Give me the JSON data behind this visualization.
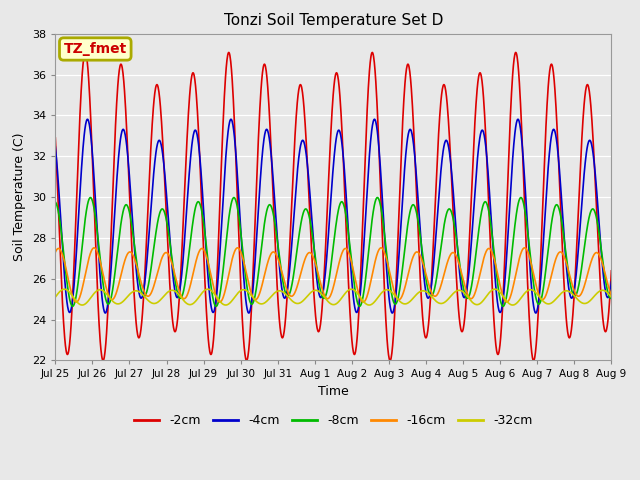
{
  "title": "Tonzi Soil Temperature Set D",
  "xlabel": "Time",
  "ylabel": "Soil Temperature (C)",
  "ylim": [
    22,
    38
  ],
  "yticks": [
    22,
    24,
    26,
    28,
    30,
    32,
    34,
    36,
    38
  ],
  "annotation": "TZ_fmet",
  "annotation_color": "#cc0000",
  "annotation_bg": "#ffffcc",
  "annotation_border": "#aaaa00",
  "fig_bg": "#e8e8e8",
  "plot_bg": "#e8e8e8",
  "series": {
    "-2cm": {
      "color": "#dd0000",
      "amplitude": 6.8,
      "mean": 29.5,
      "phase_hours": 0.0,
      "linewidth": 1.2
    },
    "-4cm": {
      "color": "#0000cc",
      "amplitude": 4.3,
      "mean": 29.0,
      "phase_hours": 1.5,
      "linewidth": 1.2
    },
    "-8cm": {
      "color": "#00bb00",
      "amplitude": 2.4,
      "mean": 27.3,
      "phase_hours": 3.5,
      "linewidth": 1.2
    },
    "-16cm": {
      "color": "#ff8800",
      "amplitude": 1.2,
      "mean": 26.2,
      "phase_hours": 6.0,
      "linewidth": 1.2
    },
    "-32cm": {
      "color": "#cccc00",
      "amplitude": 0.35,
      "mean": 25.1,
      "phase_hours": 10.0,
      "linewidth": 1.2
    }
  },
  "xtick_labels": [
    "Jul 25",
    "Jul 26",
    "Jul 27",
    "Jul 28",
    "Jul 29",
    "Jul 30",
    "Jul 31",
    "Aug 1",
    "Aug 2",
    "Aug 3",
    "Aug 4",
    "Aug 5",
    "Aug 6",
    "Aug 7",
    "Aug 8",
    "Aug 9"
  ],
  "n_days": 15.5,
  "points_per_day": 96,
  "legend_order": [
    "-2cm",
    "-4cm",
    "-8cm",
    "-16cm",
    "-32cm"
  ],
  "peak_hour": 14.0
}
